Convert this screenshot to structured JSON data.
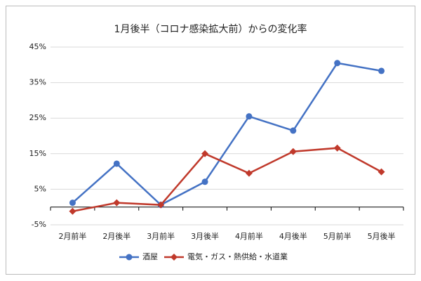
{
  "chart_data": {
    "type": "line",
    "title": "1月後半（コロナ感染拡大前）からの変化率",
    "categories": [
      "2月前半",
      "2月後半",
      "3月前半",
      "3月後半",
      "4月前半",
      "4月後半",
      "5月前半",
      "5月後半"
    ],
    "series": [
      {
        "name": "酒屋",
        "color": "#4472c4",
        "marker": "circle",
        "values": [
          1.2,
          12.2,
          0.6,
          7.1,
          25.5,
          21.5,
          40.5,
          38.3
        ]
      },
      {
        "name": "電気・ガス・熱供給・水道業",
        "color": "#c0392b",
        "marker": "diamond",
        "values": [
          -1.2,
          1.2,
          0.6,
          15.0,
          9.5,
          15.6,
          16.6,
          9.9
        ]
      }
    ],
    "ylim": [
      -5,
      45
    ],
    "yticks": [
      {
        "value": -5,
        "label": "-5%"
      },
      {
        "value": 5,
        "label": "5%"
      },
      {
        "value": 15,
        "label": "15%"
      },
      {
        "value": 25,
        "label": "25%"
      },
      {
        "value": 35,
        "label": "35%"
      },
      {
        "value": 45,
        "label": "45%"
      }
    ],
    "grid": true
  }
}
